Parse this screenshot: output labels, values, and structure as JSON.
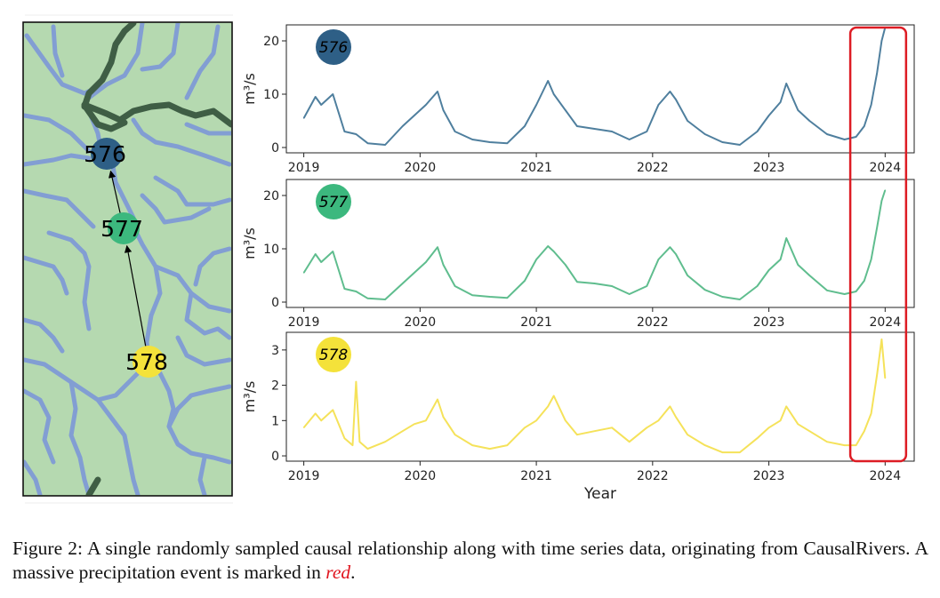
{
  "map": {
    "background": "#b5d9b0",
    "river_color": "#5a6ff0",
    "main_river_color": "#3f5e45",
    "nodes": [
      {
        "id": "576",
        "label": "576",
        "color": "#2e5f86"
      },
      {
        "id": "577",
        "label": "577",
        "color": "#3cb87e"
      },
      {
        "id": "578",
        "label": "578",
        "color": "#f4e23a"
      }
    ],
    "edges": [
      {
        "from": "578",
        "to": "577"
      },
      {
        "from": "577",
        "to": "576"
      }
    ]
  },
  "chart_data": [
    {
      "type": "line",
      "series_name": "576",
      "color": "#4f7f9e",
      "badge_color": "#2e5f86",
      "ylabel": "m³/s",
      "ylim": [
        -1,
        23
      ],
      "yticks": [
        0,
        10,
        20
      ],
      "xlim": [
        2018.85,
        2024.25
      ],
      "xticks": [
        2019,
        2020,
        2021,
        2022,
        2023,
        2024
      ],
      "xlabel": "",
      "x": [
        2019.0,
        2019.1,
        2019.15,
        2019.25,
        2019.35,
        2019.45,
        2019.55,
        2019.7,
        2019.85,
        2019.95,
        2020.05,
        2020.15,
        2020.2,
        2020.3,
        2020.45,
        2020.6,
        2020.75,
        2020.9,
        2021.0,
        2021.1,
        2021.15,
        2021.25,
        2021.35,
        2021.5,
        2021.65,
        2021.8,
        2021.95,
        2022.05,
        2022.15,
        2022.2,
        2022.3,
        2022.45,
        2022.6,
        2022.75,
        2022.9,
        2023.0,
        2023.1,
        2023.15,
        2023.25,
        2023.35,
        2023.5,
        2023.65,
        2023.75,
        2023.82,
        2023.88,
        2023.93,
        2023.97,
        2024.0
      ],
      "values": [
        5.5,
        9.5,
        8.0,
        10.0,
        3.0,
        2.5,
        0.8,
        0.5,
        4.0,
        6.0,
        8.0,
        10.5,
        7.0,
        3.0,
        1.5,
        1.0,
        0.8,
        4.0,
        8.0,
        12.5,
        10.0,
        7.0,
        4.0,
        3.5,
        3.0,
        1.5,
        3.0,
        8.0,
        10.5,
        9.0,
        5.0,
        2.5,
        1.0,
        0.5,
        3.0,
        6.0,
        8.5,
        12.0,
        7.0,
        5.0,
        2.5,
        1.5,
        2.0,
        4.0,
        8.0,
        14.0,
        20.0,
        22.5
      ]
    },
    {
      "type": "line",
      "series_name": "577",
      "color": "#5fbd8e",
      "badge_color": "#3cb87e",
      "ylabel": "m³/s",
      "ylim": [
        -1,
        23
      ],
      "yticks": [
        0,
        10,
        20
      ],
      "xlim": [
        2018.85,
        2024.25
      ],
      "xticks": [
        2019,
        2020,
        2021,
        2022,
        2023,
        2024
      ],
      "xlabel": "",
      "x": [
        2019.0,
        2019.1,
        2019.15,
        2019.25,
        2019.35,
        2019.45,
        2019.55,
        2019.7,
        2019.85,
        2019.95,
        2020.05,
        2020.15,
        2020.2,
        2020.3,
        2020.45,
        2020.6,
        2020.75,
        2020.9,
        2021.0,
        2021.1,
        2021.15,
        2021.25,
        2021.35,
        2021.5,
        2021.65,
        2021.8,
        2021.95,
        2022.05,
        2022.15,
        2022.2,
        2022.3,
        2022.45,
        2022.6,
        2022.75,
        2022.9,
        2023.0,
        2023.1,
        2023.15,
        2023.25,
        2023.35,
        2023.5,
        2023.65,
        2023.75,
        2023.82,
        2023.88,
        2023.93,
        2023.97,
        2024.0
      ],
      "values": [
        5.5,
        9.0,
        7.5,
        9.5,
        2.5,
        2.0,
        0.7,
        0.5,
        3.5,
        5.5,
        7.5,
        10.3,
        7.0,
        3.0,
        1.3,
        1.0,
        0.8,
        4.0,
        8.0,
        10.5,
        9.5,
        7.0,
        3.8,
        3.5,
        3.0,
        1.5,
        3.0,
        8.0,
        10.3,
        9.0,
        5.0,
        2.3,
        1.0,
        0.5,
        3.0,
        6.0,
        8.0,
        12.0,
        7.0,
        5.0,
        2.2,
        1.5,
        2.0,
        4.0,
        8.0,
        14.0,
        19.0,
        21.0
      ]
    },
    {
      "type": "line",
      "series_name": "578",
      "color": "#f5e25a",
      "badge_color": "#f4e23a",
      "ylabel": "m³/s",
      "ylim": [
        -0.15,
        3.5
      ],
      "yticks": [
        0,
        1,
        2,
        3
      ],
      "xlim": [
        2018.85,
        2024.25
      ],
      "xticks": [
        2019,
        2020,
        2021,
        2022,
        2023,
        2024
      ],
      "xlabel": "Year",
      "x": [
        2019.0,
        2019.1,
        2019.15,
        2019.25,
        2019.35,
        2019.42,
        2019.45,
        2019.48,
        2019.55,
        2019.7,
        2019.85,
        2019.95,
        2020.05,
        2020.15,
        2020.2,
        2020.3,
        2020.45,
        2020.6,
        2020.75,
        2020.9,
        2021.0,
        2021.1,
        2021.15,
        2021.25,
        2021.35,
        2021.5,
        2021.65,
        2021.8,
        2021.95,
        2022.05,
        2022.15,
        2022.2,
        2022.3,
        2022.45,
        2022.6,
        2022.75,
        2022.9,
        2023.0,
        2023.1,
        2023.15,
        2023.25,
        2023.35,
        2023.5,
        2023.65,
        2023.75,
        2023.82,
        2023.88,
        2023.93,
        2023.97,
        2024.0
      ],
      "values": [
        0.8,
        1.2,
        1.0,
        1.3,
        0.5,
        0.3,
        2.1,
        0.4,
        0.2,
        0.4,
        0.7,
        0.9,
        1.0,
        1.6,
        1.1,
        0.6,
        0.3,
        0.2,
        0.3,
        0.8,
        1.0,
        1.4,
        1.7,
        1.0,
        0.6,
        0.7,
        0.8,
        0.4,
        0.8,
        1.0,
        1.4,
        1.1,
        0.6,
        0.3,
        0.1,
        0.1,
        0.5,
        0.8,
        1.0,
        1.4,
        0.9,
        0.7,
        0.4,
        0.3,
        0.3,
        0.7,
        1.2,
        2.3,
        3.3,
        2.2
      ]
    }
  ],
  "highlight": {
    "color": "#dd1c24",
    "x_start": 2023.7,
    "x_end": 2024.18
  },
  "caption": {
    "text_main": "Figure 2: A single randomly sampled causal relationship along with time series data, originating from CausalRivers. A massive precipitation event is marked in ",
    "text_red": "red",
    "text_end": "."
  }
}
